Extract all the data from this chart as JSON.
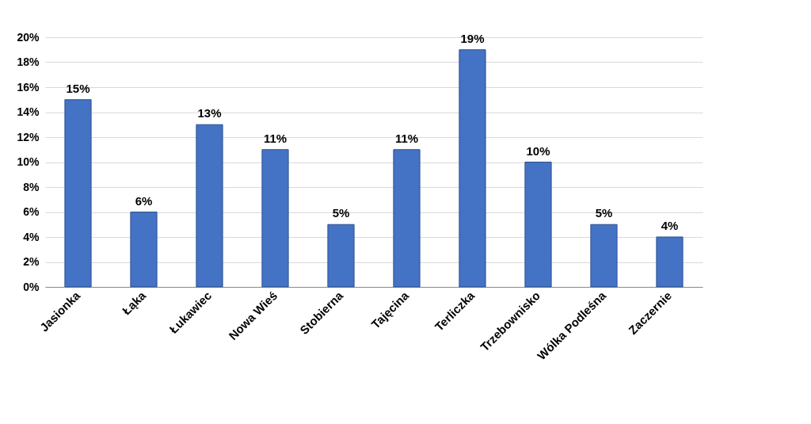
{
  "chart_data": {
    "type": "bar",
    "categories": [
      "Jasionka",
      "Łąka",
      "Łukawiec",
      "Nowa Wieś",
      "Stobierna",
      "Tajęcina",
      "Terliczka",
      "Trzebownisko",
      "Wólka Podleśna",
      "Zaczernie"
    ],
    "values": [
      15,
      6,
      13,
      11,
      5,
      11,
      19,
      10,
      5,
      4
    ],
    "color": "#4472c4",
    "ylim": [
      0,
      20
    ],
    "yticks": [
      {
        "value": 0,
        "label": "0%"
      },
      {
        "value": 2,
        "label": "2%"
      },
      {
        "value": 4,
        "label": "4%"
      },
      {
        "value": 6,
        "label": "6%"
      },
      {
        "value": 8,
        "label": "8%"
      },
      {
        "value": 10,
        "label": "10%"
      },
      {
        "value": 12,
        "label": "12%"
      },
      {
        "value": 14,
        "label": "14%"
      },
      {
        "value": 16,
        "label": "16%"
      },
      {
        "value": 18,
        "label": "18%"
      },
      {
        "value": 20,
        "label": "20%"
      }
    ],
    "value_labels": [
      "15%",
      "6%",
      "13%",
      "11%",
      "5%",
      "11%",
      "19%",
      "10%",
      "5%",
      "4%"
    ],
    "grid": "y"
  }
}
